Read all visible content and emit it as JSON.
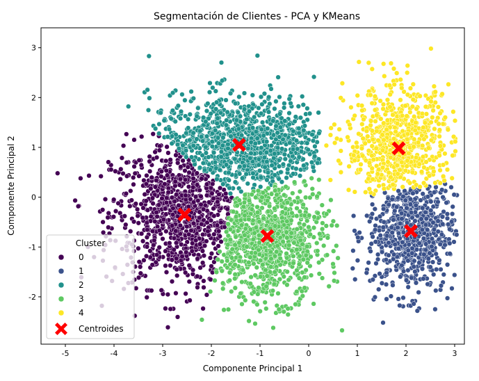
{
  "chart_data": {
    "type": "scatter",
    "title": "Segmentación de Clientes - PCA y KMeans",
    "xlabel": "Componente Principal 1",
    "ylabel": "Componente Principal 2",
    "xlim": [
      -5.5,
      3.2
    ],
    "ylim": [
      -2.95,
      3.4
    ],
    "xticks": [
      -5,
      -4,
      -3,
      -2,
      -1,
      0,
      1,
      2,
      3
    ],
    "yticks": [
      -2,
      -1,
      0,
      1,
      2,
      3
    ],
    "grid": false,
    "legend_title": "Cluster",
    "legend_position": "lower-left",
    "series": [
      {
        "name": "0",
        "color": "#440154",
        "center": [
          -2.55,
          -0.35
        ],
        "spread": [
          0.75,
          0.72
        ],
        "count": 900
      },
      {
        "name": "1",
        "color": "#3b528b",
        "center": [
          2.1,
          -0.7
        ],
        "spread": [
          0.45,
          0.62
        ],
        "count": 650
      },
      {
        "name": "2",
        "color": "#21918c",
        "center": [
          -1.4,
          1.05
        ],
        "spread": [
          0.95,
          0.5
        ],
        "count": 1000
      },
      {
        "name": "3",
        "color": "#5ec962",
        "center": [
          -0.85,
          -0.8
        ],
        "spread": [
          0.6,
          0.62
        ],
        "count": 950
      },
      {
        "name": "4",
        "color": "#fde725",
        "center": [
          1.85,
          1.0
        ],
        "spread": [
          0.55,
          0.6
        ],
        "count": 700
      }
    ],
    "centroids": {
      "name": "Centroides",
      "color": "#ff0000",
      "points": [
        [
          -2.55,
          -0.35
        ],
        [
          2.1,
          -0.68
        ],
        [
          -1.43,
          1.05
        ],
        [
          -0.85,
          -0.78
        ],
        [
          1.85,
          0.98
        ]
      ]
    }
  }
}
